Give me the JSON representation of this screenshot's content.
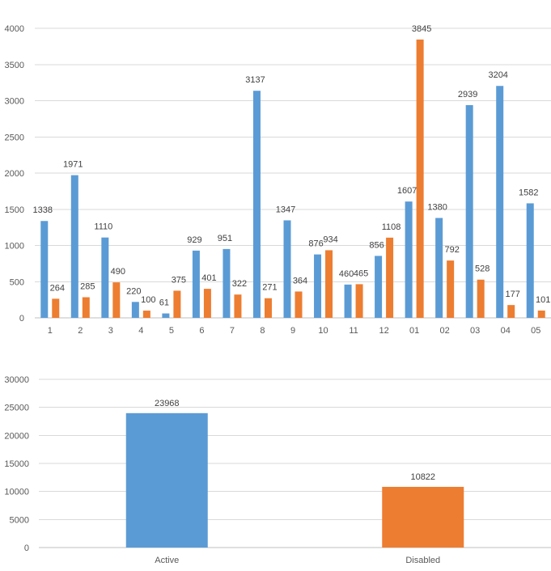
{
  "chart_data": [
    {
      "type": "bar",
      "title": "",
      "xlabel": "",
      "ylabel": "",
      "ylim": [
        0,
        4000
      ],
      "yticks": [
        0,
        500,
        1000,
        1500,
        2000,
        2500,
        3000,
        3500,
        4000
      ],
      "grid": true,
      "legend": "none",
      "categories": [
        "1",
        "2",
        "3",
        "4",
        "5",
        "6",
        "7",
        "8",
        "9",
        "10",
        "11",
        "12",
        "01",
        "02",
        "03",
        "04",
        "05"
      ],
      "series": [
        {
          "color": "#5B9BD5",
          "values": [
            1338,
            1971,
            1110,
            220,
            61,
            929,
            951,
            3137,
            1347,
            876,
            460,
            856,
            1607,
            1380,
            2939,
            3204,
            1582
          ]
        },
        {
          "color": "#ED7D31",
          "values": [
            264,
            285,
            490,
            100,
            375,
            401,
            322,
            271,
            364,
            934,
            465,
            1108,
            3845,
            792,
            528,
            177,
            101
          ]
        }
      ]
    },
    {
      "type": "bar",
      "title": "",
      "xlabel": "",
      "ylabel": "",
      "ylim": [
        0,
        30000
      ],
      "yticks": [
        0,
        5000,
        10000,
        15000,
        20000,
        25000,
        30000
      ],
      "grid": true,
      "legend": "none",
      "categories": [
        "Active",
        "Disabled"
      ],
      "values": [
        23968,
        10822
      ],
      "colors": [
        "#5B9BD5",
        "#ED7D31"
      ]
    }
  ]
}
